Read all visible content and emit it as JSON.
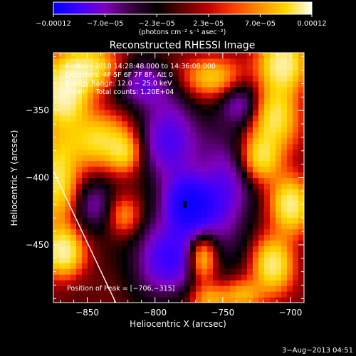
{
  "chart_data": {
    "type": "heatmap",
    "title": "Reconstructed RHESSI Image",
    "xlabel": "Heliocentric X (arcsec)",
    "ylabel": "Heliocentric Y (arcsec)",
    "xlim": [
      -875,
      -690
    ],
    "ylim": [
      -493,
      -307
    ],
    "x_ticks": [
      -850,
      -800,
      -750,
      -700
    ],
    "x_tick_labels": [
      "−850",
      "−800",
      "−750",
      "−700"
    ],
    "y_ticks": [
      -350,
      -400,
      -450
    ],
    "y_tick_labels": [
      "−350",
      "−400",
      "−450"
    ],
    "colorbar": {
      "range": [
        -0.00012,
        0.00012
      ],
      "tick_labels": [
        "−0.00012",
        "−7.0e−05",
        "−2.3e−05",
        "2.3e−05",
        "7.0e−05",
        "0.00012"
      ],
      "unit_label": "(photons cm⁻² s⁻¹ asec⁻²)",
      "colors": [
        "#0000ff",
        "#4000ff",
        "#8000c0",
        "#3a0040",
        "#000000",
        "#600000",
        "#c00000",
        "#ff4000",
        "#ff9000",
        "#ffd800",
        "#ffffff"
      ]
    },
    "annotations": [
      "6−Nov−2010 14:28:48.000 to 14:36:08.000",
      "Detectors: 4F 5F 6F 7F 8F, Att 0",
      "Energy Range: 12.0 − 25.0 keV",
      "Clean     Total counts: 1.20E+04"
    ],
    "peak_label": "Position of Peak = [−706,−315]",
    "grid": false,
    "sources": [
      {
        "x": -852,
        "y": -318,
        "amp": 0.9,
        "sx": 16,
        "sy": 12
      },
      {
        "x": -868,
        "y": -340,
        "amp": 1.0,
        "sx": 12,
        "sy": 14
      },
      {
        "x": -842,
        "y": -372,
        "amp": 0.75,
        "sx": 18,
        "sy": 14
      },
      {
        "x": -872,
        "y": -402,
        "amp": 0.8,
        "sx": 10,
        "sy": 22
      },
      {
        "x": -868,
        "y": -455,
        "amp": 1.0,
        "sx": 10,
        "sy": 12
      },
      {
        "x": -822,
        "y": -382,
        "amp": 0.5,
        "sx": 8,
        "sy": 10
      },
      {
        "x": -822,
        "y": -428,
        "amp": 0.45,
        "sx": 8,
        "sy": 10
      },
      {
        "x": -758,
        "y": -325,
        "amp": 0.65,
        "sx": 14,
        "sy": 10
      },
      {
        "x": -706,
        "y": -315,
        "amp": 1.0,
        "sx": 12,
        "sy": 14
      },
      {
        "x": -712,
        "y": -355,
        "amp": 0.85,
        "sx": 12,
        "sy": 16
      },
      {
        "x": -722,
        "y": -385,
        "amp": 0.75,
        "sx": 10,
        "sy": 12
      },
      {
        "x": -700,
        "y": -420,
        "amp": 0.95,
        "sx": 10,
        "sy": 14
      },
      {
        "x": -713,
        "y": -465,
        "amp": 0.9,
        "sx": 10,
        "sy": 14
      },
      {
        "x": -765,
        "y": -460,
        "amp": 0.8,
        "sx": 7,
        "sy": 12
      },
      {
        "x": -760,
        "y": -490,
        "amp": 0.55,
        "sx": 10,
        "sy": 8
      },
      {
        "x": -735,
        "y": -487,
        "amp": 0.5,
        "sx": 10,
        "sy": 8
      },
      {
        "x": -790,
        "y": -372,
        "amp": -0.65,
        "sx": 16,
        "sy": 22
      },
      {
        "x": -775,
        "y": -420,
        "amp": -1.0,
        "sx": 12,
        "sy": 14
      },
      {
        "x": -790,
        "y": -460,
        "amp": -0.7,
        "sx": 18,
        "sy": 20
      },
      {
        "x": -748,
        "y": -410,
        "amp": -0.55,
        "sx": 14,
        "sy": 30
      },
      {
        "x": -810,
        "y": -330,
        "amp": -0.5,
        "sx": 14,
        "sy": 12
      },
      {
        "x": -735,
        "y": -345,
        "amp": -0.45,
        "sx": 12,
        "sy": 12
      },
      {
        "x": -845,
        "y": -420,
        "amp": -0.4,
        "sx": 10,
        "sy": 14
      }
    ]
  },
  "footer": {
    "date_stamp": "3−Aug−2013 04:51"
  }
}
